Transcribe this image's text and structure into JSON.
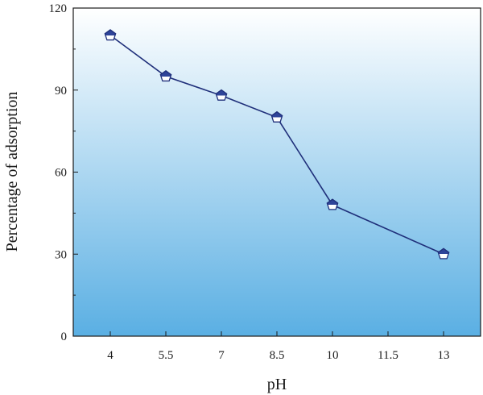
{
  "chart_data": {
    "type": "line",
    "title": "",
    "xlabel": "pH",
    "ylabel": "Percentage of adsorption",
    "x_ticks": [
      "4",
      "5.5",
      "7",
      "8.5",
      "10",
      "11.5",
      "13"
    ],
    "y_ticks": [
      "0",
      "30",
      "60",
      "90",
      "120"
    ],
    "xlim": [
      3,
      14
    ],
    "ylim": [
      0,
      120
    ],
    "grid": false,
    "series": [
      {
        "marker": "pentagon",
        "x": [
          4,
          5.5,
          7,
          8.5,
          10,
          13
        ],
        "values": [
          110,
          95,
          88,
          80,
          48,
          30
        ]
      }
    ],
    "colors": {
      "line": "#1f2f7a",
      "marker_fill_top": "#2e4499",
      "marker_fill_bottom": "#ffffff",
      "background_top": "#ffffff",
      "background_bottom": "#5aafe3"
    }
  }
}
